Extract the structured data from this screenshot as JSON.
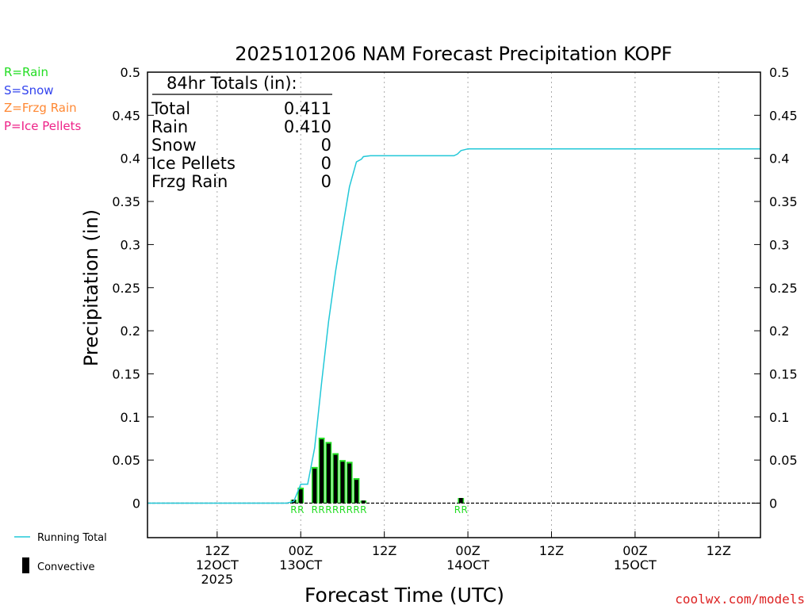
{
  "chart_data": {
    "type": "bar",
    "title": "2025101206 NAM Forecast Precipitation KOPF",
    "xlabel": "Forecast Time (UTC)",
    "ylabel": "Precipitation (in)",
    "ylim": [
      -0.04,
      0.5
    ],
    "y_ticks": [
      "0",
      "0.05",
      "0.1",
      "0.15",
      "0.2",
      "0.25",
      "0.3",
      "0.35",
      "0.4",
      "0.45",
      "0.5"
    ],
    "x_range_hours": [
      -4,
      84
    ],
    "x_ticks": [
      {
        "hour": 6,
        "line1": "12Z",
        "line2": "12OCT",
        "line3": "2025"
      },
      {
        "hour": 18,
        "line1": "00Z",
        "line2": "13OCT",
        "line3": ""
      },
      {
        "hour": 30,
        "line1": "12Z",
        "line2": "",
        "line3": ""
      },
      {
        "hour": 42,
        "line1": "00Z",
        "line2": "14OCT",
        "line3": ""
      },
      {
        "hour": 54,
        "line1": "12Z",
        "line2": "",
        "line3": ""
      },
      {
        "hour": 66,
        "line1": "00Z",
        "line2": "15OCT",
        "line3": ""
      },
      {
        "hour": 78,
        "line1": "12Z",
        "line2": "",
        "line3": ""
      }
    ],
    "bars": [
      {
        "hour": 17,
        "total": 0.004,
        "convective": 0.004
      },
      {
        "hour": 18,
        "total": 0.018,
        "convective": 0.016
      },
      {
        "hour": 20,
        "total": 0.042,
        "convective": 0.04
      },
      {
        "hour": 21,
        "total": 0.076,
        "convective": 0.074
      },
      {
        "hour": 22,
        "total": 0.071,
        "convective": 0.069
      },
      {
        "hour": 23,
        "total": 0.058,
        "convective": 0.056
      },
      {
        "hour": 24,
        "total": 0.05,
        "convective": 0.048
      },
      {
        "hour": 25,
        "total": 0.048,
        "convective": 0.046
      },
      {
        "hour": 26,
        "total": 0.029,
        "convective": 0.027
      },
      {
        "hour": 27,
        "total": 0.003,
        "convective": 0.003
      },
      {
        "hour": 41,
        "total": 0.006,
        "convective": 0.006
      }
    ],
    "running_total": {
      "hours": [
        -4,
        16,
        17,
        18,
        19,
        20,
        21,
        22,
        23,
        24,
        25,
        26,
        26.7,
        27,
        28,
        29,
        40,
        40.5,
        41,
        42,
        43,
        84
      ],
      "values": [
        0,
        0,
        0.002,
        0.022,
        0.022,
        0.064,
        0.14,
        0.211,
        0.269,
        0.319,
        0.367,
        0.396,
        0.399,
        0.402,
        0.403,
        0.403,
        0.403,
        0.405,
        0.409,
        0.411,
        0.411,
        0.411
      ]
    },
    "precip_types": [
      {
        "hour": 17,
        "type": "R"
      },
      {
        "hour": 18,
        "type": "R"
      },
      {
        "hour": 20,
        "type": "R"
      },
      {
        "hour": 21,
        "type": "R"
      },
      {
        "hour": 22,
        "type": "R"
      },
      {
        "hour": 23,
        "type": "R"
      },
      {
        "hour": 24,
        "type": "R"
      },
      {
        "hour": 25,
        "type": "R"
      },
      {
        "hour": 26,
        "type": "R"
      },
      {
        "hour": 27,
        "type": "R"
      },
      {
        "hour": 40.5,
        "type": "R"
      },
      {
        "hour": 41.5,
        "type": "R"
      }
    ]
  },
  "totals": {
    "header": "84hr Totals (in):",
    "rows": [
      {
        "label": "Total",
        "value": "0.411"
      },
      {
        "label": "Rain",
        "value": "0.410"
      },
      {
        "label": "Snow",
        "value": "0"
      },
      {
        "label": "Ice Pellets",
        "value": "0"
      },
      {
        "label": "Frzg Rain",
        "value": "0"
      }
    ]
  },
  "type_legend": [
    {
      "text": "R=Rain",
      "color": "#22dd22"
    },
    {
      "text": "S=Snow",
      "color": "#3344ee"
    },
    {
      "text": "Z=Frzg Rain",
      "color": "#ff8833"
    },
    {
      "text": "P=Ice Pellets",
      "color": "#ee2288"
    }
  ],
  "bottom_legend": {
    "running_total_label": "Running Total",
    "convective_label": "Convective"
  },
  "colors": {
    "running_total": "#22c8d8",
    "rain": "#22dd22",
    "convective": "#000000",
    "credit": "#dd2222"
  },
  "credit": "coolwx.com/models"
}
